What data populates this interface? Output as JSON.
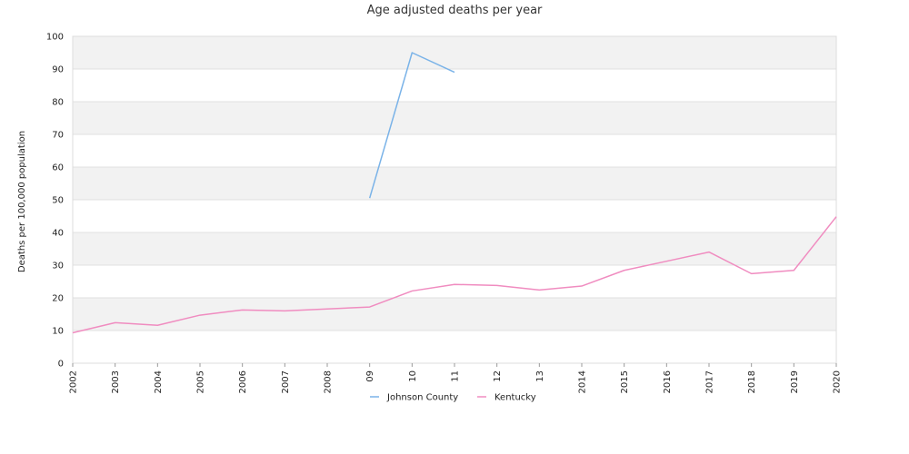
{
  "chart_data": {
    "type": "line",
    "title": "Age adjusted deaths per year",
    "xlabel": "",
    "ylabel": "Deaths per 100,000 population",
    "ylim": [
      0,
      100
    ],
    "yticks": [
      "0",
      "10",
      "20",
      "30",
      "40",
      "50",
      "60",
      "70",
      "80",
      "90",
      "100"
    ],
    "categories": [
      "2002",
      "2003",
      "2004",
      "2005",
      "2006",
      "2007",
      "2008",
      "09",
      "10",
      "11",
      "12",
      "13",
      "2014",
      "2015",
      "2016",
      "2017",
      "2018",
      "2019",
      "2020"
    ],
    "grid": true,
    "legend_position": "bottom",
    "series": [
      {
        "name": "Johnson County",
        "color": "#7ab3e8",
        "values": [
          null,
          null,
          null,
          null,
          null,
          null,
          null,
          50.5,
          95,
          89,
          null,
          null,
          null,
          null,
          null,
          null,
          null,
          null,
          null
        ]
      },
      {
        "name": "Kentucky",
        "color": "#f08cc0",
        "values": [
          9.3,
          12.4,
          11.6,
          14.7,
          16.3,
          16.0,
          16.6,
          17.2,
          22.1,
          24.1,
          23.8,
          22.4,
          23.6,
          28.4,
          31.2,
          34.0,
          27.4,
          28.4,
          44.8
        ]
      }
    ],
    "band_colors": [
      "#f2f2f2",
      "#ffffff"
    ]
  }
}
